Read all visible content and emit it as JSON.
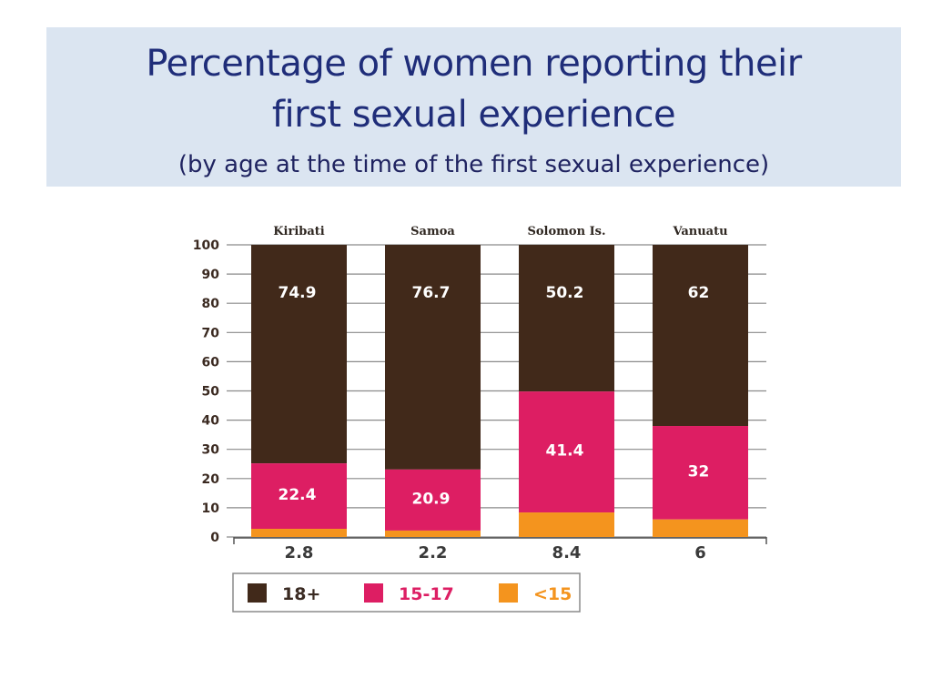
{
  "header": {
    "title_line1": "Percentage of women reporting their",
    "title_line2": "first sexual experience",
    "subtitle": "(by age at the time of the first sexual experience)"
  },
  "colors": {
    "band": "#dbe5f1",
    "title_text": "#1f2d79",
    "age_18_plus": "#41291a",
    "age_15_17": "#dd1e63",
    "age_under_15": "#f4941e",
    "gridline": "#8a8a8a"
  },
  "chart_data": {
    "type": "bar",
    "stacked": true,
    "categories": [
      "Kiribati",
      "Samoa",
      "Solomon Is.",
      "Vanuatu"
    ],
    "series": [
      {
        "name": "<15",
        "values": [
          2.8,
          2.2,
          8.4,
          6
        ]
      },
      {
        "name": "15-17",
        "values": [
          22.4,
          20.9,
          41.4,
          32
        ]
      },
      {
        "name": "18+",
        "values": [
          74.9,
          76.7,
          50.2,
          62
        ]
      }
    ],
    "y_ticks": [
      0,
      10,
      20,
      30,
      40,
      50,
      60,
      70,
      80,
      90,
      100
    ],
    "ylim": [
      0,
      100
    ],
    "grid": true,
    "category_label_position": "top",
    "under15_labels_position": "below-axis",
    "legend": {
      "placement": "bottom",
      "entries": [
        "18+",
        "15-17",
        "<15"
      ]
    }
  }
}
